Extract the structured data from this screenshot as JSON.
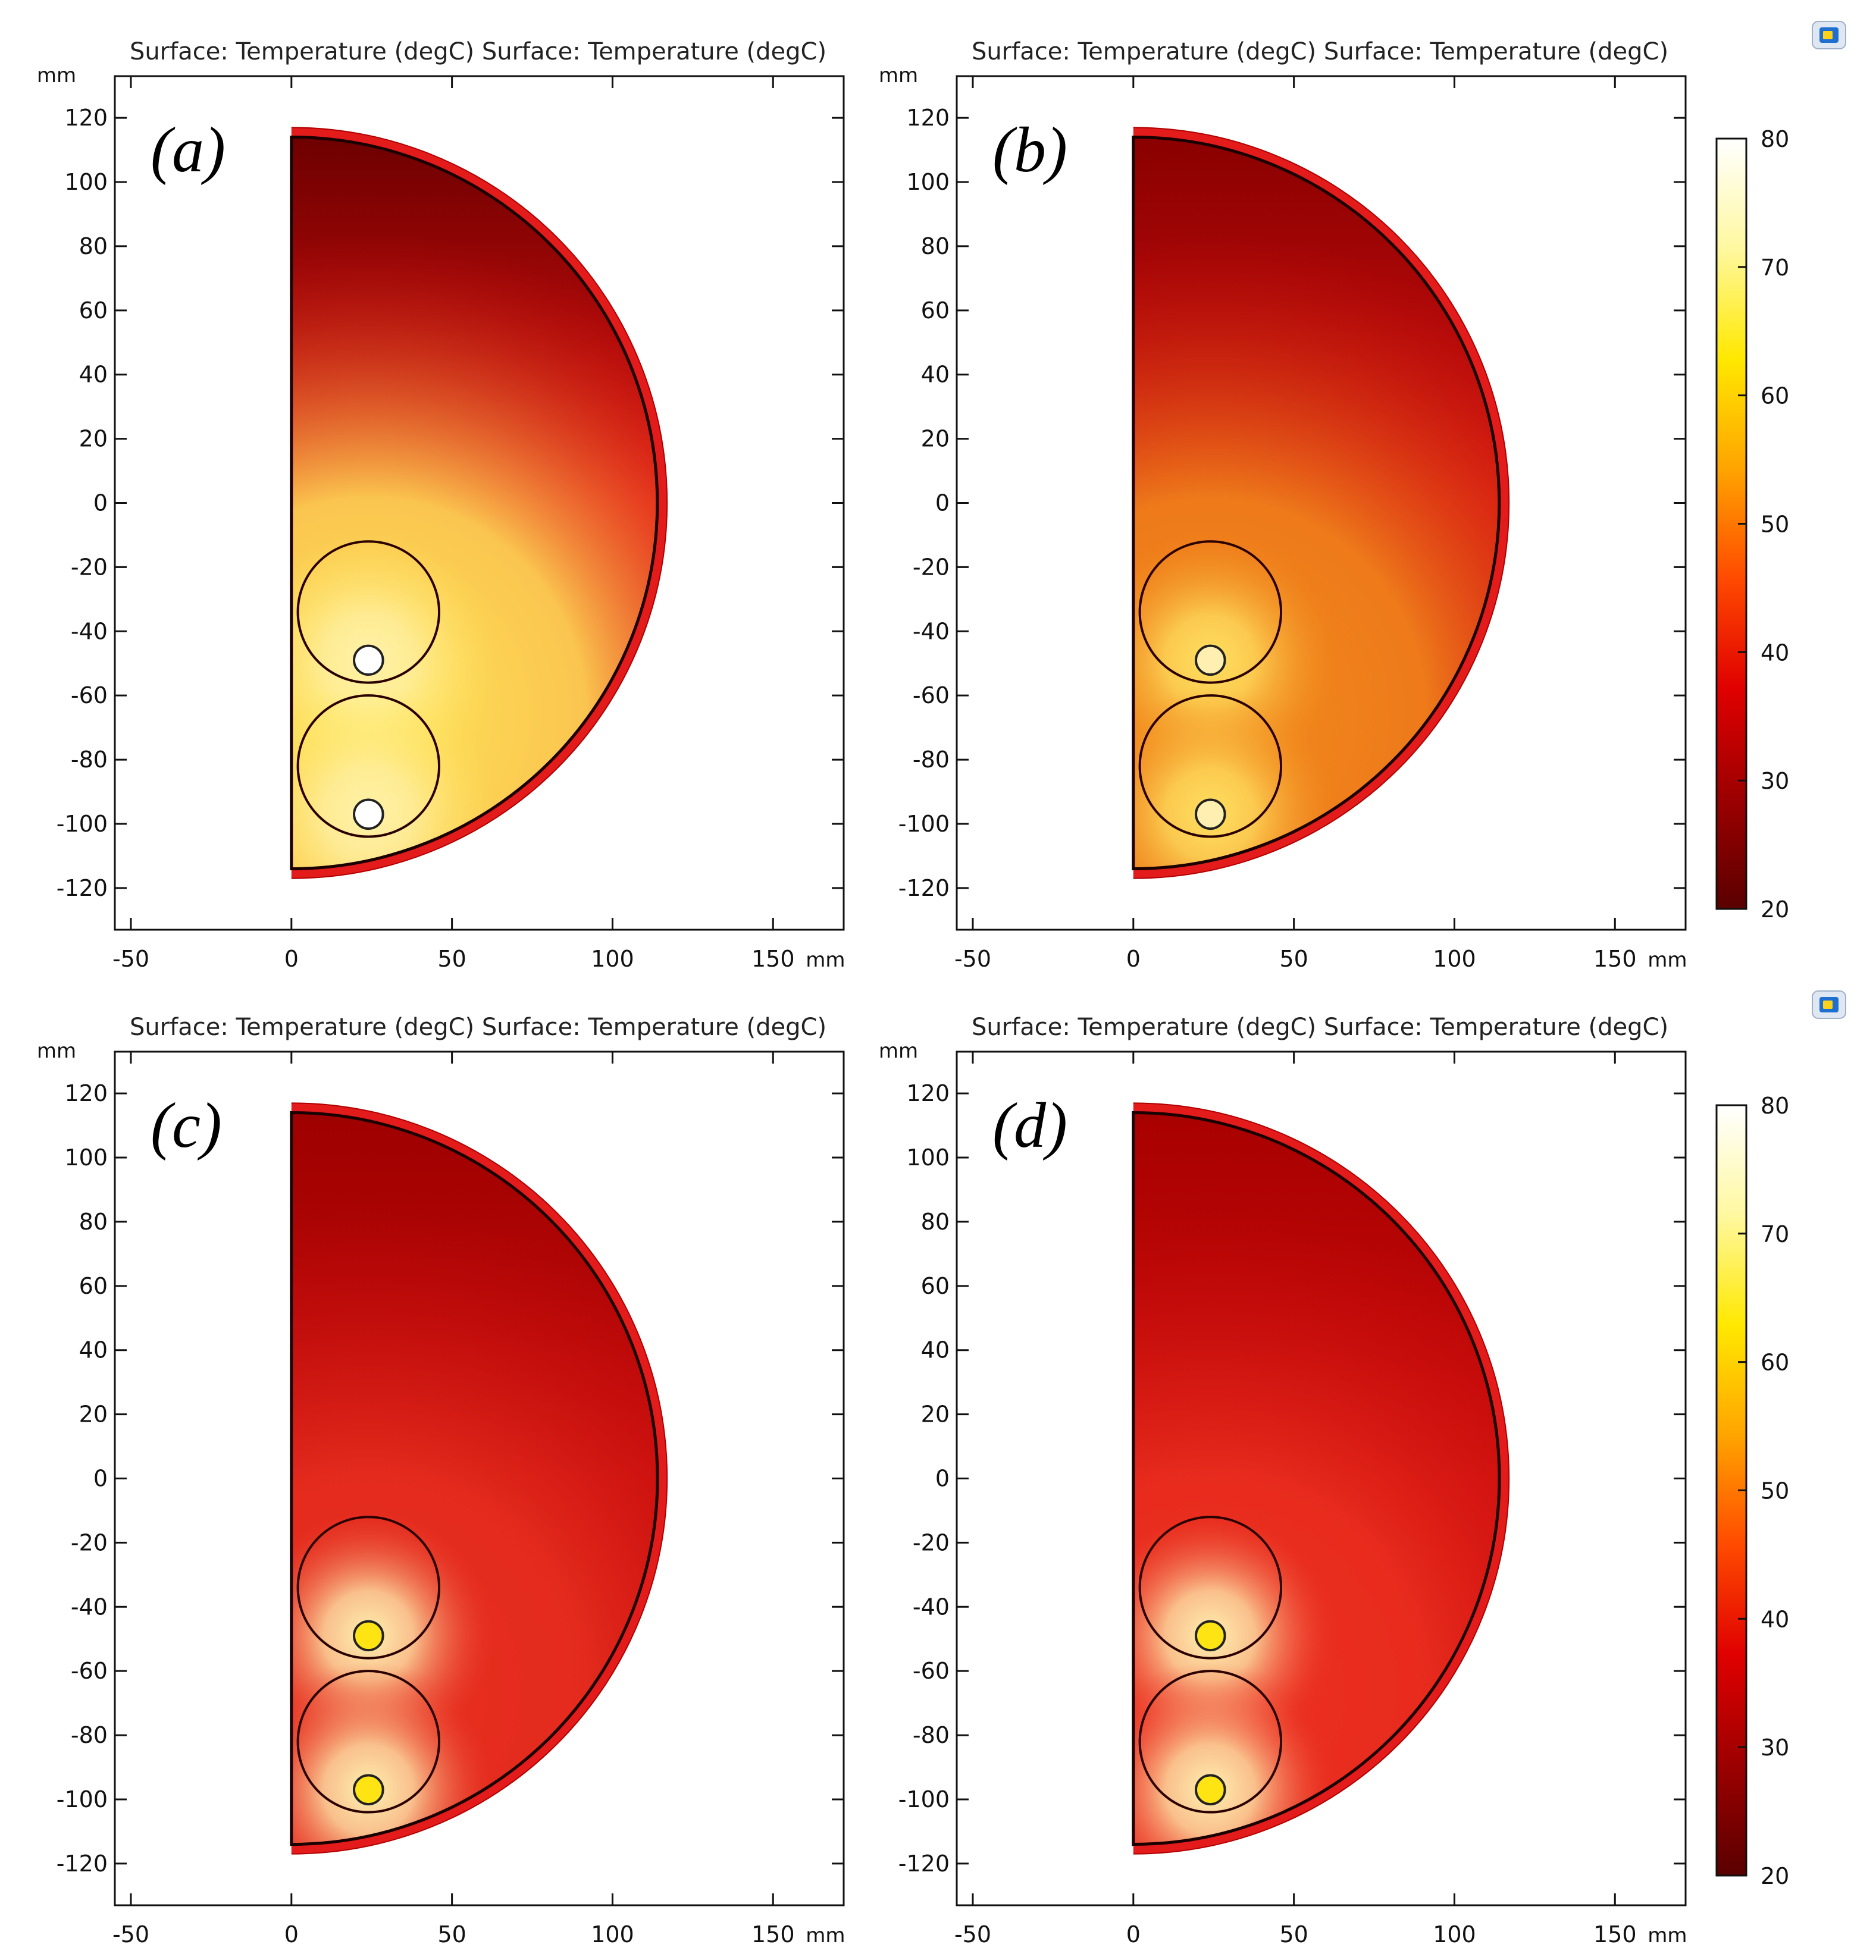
{
  "chart_data": [
    {
      "type": "heatmap",
      "panel_label": "(a)",
      "title": "Surface: Temperature (degC) Surface: Temperature (degC)",
      "ylabel": "mm",
      "x_unit": "mm",
      "xlim": [
        -55,
        172
      ],
      "ylim": [
        -133,
        133
      ],
      "x_ticks": [
        "-50",
        "0",
        "50",
        "100",
        "150"
      ],
      "y_ticks": [
        "120",
        "100",
        "80",
        "60",
        "40",
        "20",
        "0",
        "-20",
        "-40",
        "-60",
        "-80",
        "-100",
        "-120"
      ],
      "scale": {
        "min": 20,
        "max": 80,
        "ticks": [
          "80",
          "70",
          "60",
          "50",
          "40",
          "30",
          "20"
        ]
      },
      "colors": {
        "top": "#6e0000",
        "mid": "#e01010",
        "pipe_zone": "#ffe55a",
        "hot": "#fff2a8",
        "inner_pipe": "#ffffff"
      }
    },
    {
      "type": "heatmap",
      "panel_label": "(b)",
      "title": "Surface: Temperature (degC) Surface: Temperature (degC)",
      "ylabel": "mm",
      "x_unit": "mm",
      "xlim": [
        -55,
        172
      ],
      "ylim": [
        -133,
        133
      ],
      "x_ticks": [
        "-50",
        "0",
        "50",
        "100",
        "150"
      ],
      "y_ticks": [
        "120",
        "100",
        "80",
        "60",
        "40",
        "20",
        "0",
        "-20",
        "-40",
        "-60",
        "-80",
        "-100",
        "-120"
      ],
      "scale": {
        "min": 20,
        "max": 80,
        "ticks": [
          "80",
          "70",
          "60",
          "50",
          "40",
          "30",
          "20"
        ]
      },
      "colors": {
        "top": "#8a0000",
        "mid": "#d41010",
        "pipe_zone": "#f28c1c",
        "hot": "#ffe060",
        "inner_pipe": "#ffefb0"
      }
    },
    {
      "type": "heatmap",
      "panel_label": "(c)",
      "title": "Surface: Temperature (degC) Surface: Temperature (degC)",
      "ylabel": "mm",
      "x_unit": "mm",
      "xlim": [
        -55,
        172
      ],
      "ylim": [
        -133,
        133
      ],
      "x_ticks": [
        "-50",
        "0",
        "50",
        "100",
        "150"
      ],
      "y_ticks": [
        "120",
        "100",
        "80",
        "60",
        "40",
        "20",
        "0",
        "-20",
        "-40",
        "-60",
        "-80",
        "-100",
        "-120"
      ],
      "scale": {
        "min": 20,
        "max": 80,
        "ticks": [
          "80",
          "70",
          "60",
          "50",
          "40",
          "30",
          "20"
        ]
      },
      "colors": {
        "top": "#9e0000",
        "mid": "#c80c0c",
        "pipe_zone": "#e83020",
        "hot": "#fff0b0",
        "inner_pipe": "#ffe414"
      }
    },
    {
      "type": "heatmap",
      "panel_label": "(d)",
      "title": "Surface: Temperature (degC) Surface: Temperature (degC)",
      "ylabel": "mm",
      "x_unit": "mm",
      "xlim": [
        -55,
        172
      ],
      "ylim": [
        -133,
        133
      ],
      "x_ticks": [
        "-50",
        "0",
        "50",
        "100",
        "150"
      ],
      "y_ticks": [
        "120",
        "100",
        "80",
        "60",
        "40",
        "20",
        "0",
        "-20",
        "-40",
        "-60",
        "-80",
        "-100",
        "-120"
      ],
      "scale": {
        "min": 20,
        "max": 80,
        "ticks": [
          "80",
          "70",
          "60",
          "50",
          "40",
          "30",
          "20"
        ]
      },
      "colors": {
        "top": "#a80000",
        "mid": "#cc0c0c",
        "pipe_zone": "#ec3020",
        "hot": "#fff0b0",
        "inner_pipe": "#ffe414"
      }
    }
  ],
  "geometry_mm": {
    "outer_radius": 117,
    "fill_radius": 114,
    "big_circles": [
      {
        "cx": 24,
        "cy": -34,
        "r": 22
      },
      {
        "cx": 24,
        "cy": -82,
        "r": 22
      }
    ],
    "small_circles": [
      {
        "cx": 24,
        "cy": -49,
        "r": 4.5
      },
      {
        "cx": 24,
        "cy": -97,
        "r": 4.5
      }
    ]
  },
  "colorbar_stops": [
    "#5a0000",
    "#9c0000",
    "#e00000",
    "#ff4a00",
    "#ffa400",
    "#ffe800",
    "#fff8a0",
    "#ffffff"
  ]
}
